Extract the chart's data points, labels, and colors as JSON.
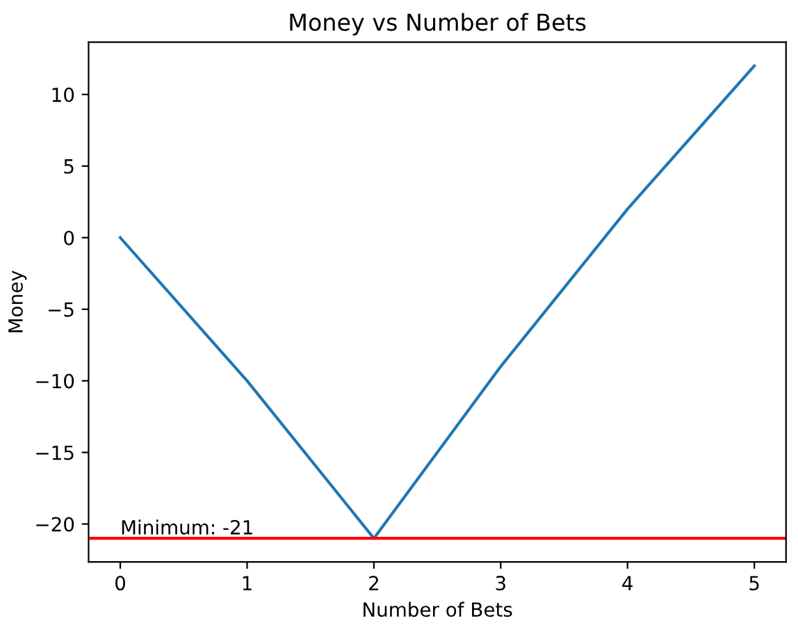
{
  "chart_data": {
    "type": "line",
    "title": "Money vs Number of Bets",
    "xlabel": "Number of Bets",
    "ylabel": "Money",
    "x": [
      0,
      1,
      2,
      3,
      4,
      5
    ],
    "series": [
      {
        "color": "#1f77b4",
        "values": [
          0,
          -10,
          -21,
          -9,
          2,
          12
        ]
      }
    ],
    "xlim": [
      -0.25,
      5.25
    ],
    "xticks": [
      0,
      1,
      2,
      3,
      4,
      5
    ],
    "ylim": [
      -22.65,
      13.65
    ],
    "yticks": [
      {
        "value": -20,
        "label": "−20"
      },
      {
        "value": -15,
        "label": "−15"
      },
      {
        "value": -10,
        "label": "−10"
      },
      {
        "value": -5,
        "label": "−5"
      },
      0,
      5,
      10
    ],
    "ref_lines": [
      {
        "axis": "y",
        "value": -21,
        "label": "Minimum: -21",
        "color": "#ff0000",
        "line_style": "solid"
      }
    ],
    "grid": false,
    "legend": false
  }
}
